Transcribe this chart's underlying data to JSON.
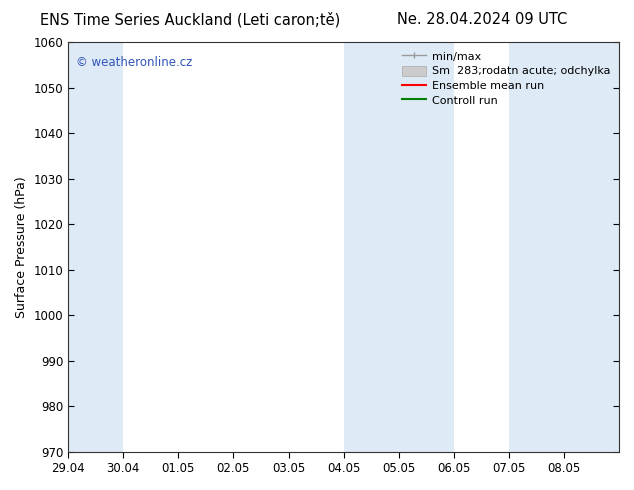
{
  "title_left": "ENS Time Series Auckland (Leti caron;tě)",
  "title_right": "Ne. 28.04.2024 09 UTC",
  "ylabel": "Surface Pressure (hPa)",
  "ylim": [
    970,
    1060
  ],
  "yticks": [
    970,
    980,
    990,
    1000,
    1010,
    1020,
    1030,
    1040,
    1050,
    1060
  ],
  "x_labels": [
    "29.04",
    "30.04",
    "01.05",
    "02.05",
    "03.05",
    "04.05",
    "05.05",
    "06.05",
    "07.05",
    "08.05"
  ],
  "shaded_bands": [
    {
      "x_start": 0,
      "x_end": 1,
      "color": "#deeaf5"
    },
    {
      "x_start": 5,
      "x_end": 7,
      "color": "#deeaf5"
    },
    {
      "x_start": 8,
      "x_end": 10,
      "color": "#deeaf5"
    }
  ],
  "watermark_text": "© weatheronline.cz",
  "watermark_color": "#3355bb",
  "bg_color": "#ffffff",
  "plot_bg_color": "#ffffff",
  "title_fontsize": 10.5,
  "ylabel_fontsize": 9,
  "tick_fontsize": 8.5,
  "legend_fontsize": 8,
  "xlim_min": 0,
  "xlim_max": 10
}
